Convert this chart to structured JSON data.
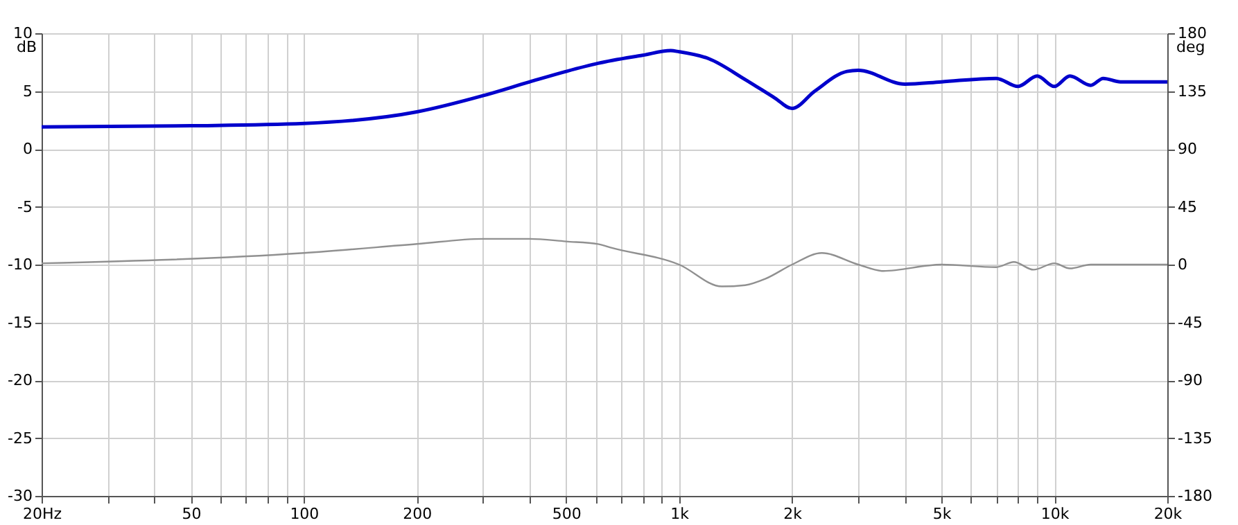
{
  "chart_data": {
    "type": "line",
    "ylabel": "dB",
    "y2label": "deg",
    "xlim": [
      20,
      20000
    ],
    "log": "x",
    "xticks": [
      {
        "value": 20,
        "label": "20Hz"
      },
      {
        "value": 30,
        "label": null
      },
      {
        "value": 40,
        "label": null
      },
      50,
      {
        "value": 60,
        "label": null
      },
      {
        "value": 70,
        "label": null
      },
      {
        "value": 80,
        "label": null
      },
      {
        "value": 90,
        "label": null
      },
      100,
      200,
      {
        "value": 300,
        "label": null
      },
      {
        "value": 400,
        "label": null
      },
      500,
      {
        "value": 600,
        "label": null
      },
      {
        "value": 700,
        "label": null
      },
      {
        "value": 800,
        "label": null
      },
      {
        "value": 900,
        "label": null
      },
      {
        "value": 1000,
        "label": "1k"
      },
      {
        "value": 2000,
        "label": "2k"
      },
      {
        "value": 3000,
        "label": null
      },
      {
        "value": 4000,
        "label": null
      },
      {
        "value": 5000,
        "label": "5k"
      },
      {
        "value": 6000,
        "label": null
      },
      {
        "value": 7000,
        "label": null
      },
      {
        "value": 8000,
        "label": null
      },
      {
        "value": 9000,
        "label": null
      },
      {
        "value": 10000,
        "label": "10k"
      },
      {
        "value": 20000,
        "label": "20k"
      }
    ],
    "ylim": [
      -30,
      10
    ],
    "yticks": [
      -30,
      -25,
      -20,
      -15,
      -10,
      -5,
      0,
      5,
      10
    ],
    "y2lim": [
      -180,
      180
    ],
    "y2ticks": [
      -180,
      -135,
      -90,
      -45,
      0,
      45,
      90,
      135,
      180
    ],
    "grid": true,
    "marker": "none",
    "line_style": "solid",
    "series": [
      {
        "color": "#0000cc",
        "x": [
          20,
          50,
          100,
          200,
          300,
          400,
          500,
          608,
          800,
          950,
          1000,
          1200,
          1500,
          1800,
          2000,
          2300,
          2800,
          3000,
          4000,
          5000,
          7000,
          8000,
          9000,
          10000,
          11000,
          12500,
          13500,
          15000,
          20000
        ],
        "values": [
          1.9,
          2.0,
          2.2,
          3.2,
          4.6,
          5.8,
          6.7,
          7.4,
          8.1,
          8.5,
          8.4,
          7.8,
          6.0,
          4.4,
          3.5,
          5.0,
          6.7,
          6.8,
          5.6,
          5.8,
          6.1,
          5.4,
          6.3,
          5.4,
          6.3,
          5.5,
          6.1,
          5.8,
          5.8
        ]
      },
      {
        "color": "#909090",
        "axis": "y2",
        "x": [
          20,
          100,
          200,
          300,
          400,
          500,
          608,
          662,
          1000,
          1300,
          1500,
          1700,
          2000,
          2400,
          3000,
          3500,
          5000,
          7000,
          7800,
          8800,
          10000,
          11000,
          12500,
          20000
        ],
        "values": [
          1,
          9,
          16,
          20,
          20,
          18,
          16,
          13,
          0,
          -17,
          -16,
          -11,
          0,
          9,
          0,
          -5,
          0,
          -2,
          2,
          -4,
          1,
          -3,
          0,
          0
        ]
      }
    ]
  }
}
